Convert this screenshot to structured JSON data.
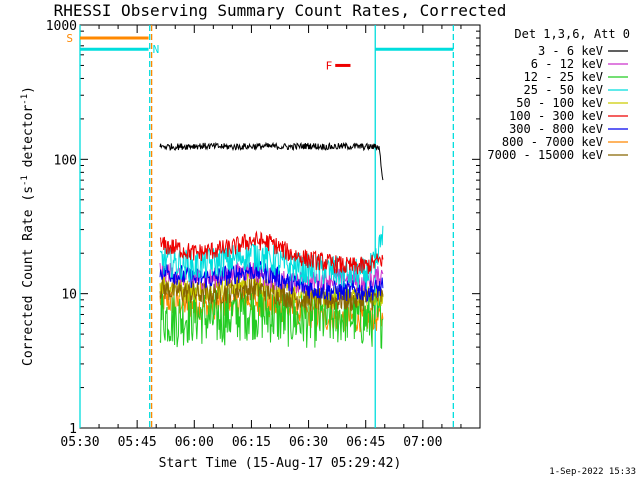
{
  "chart_data": {
    "type": "line",
    "title": "RHESSI Observing Summary Count Rates, Corrected",
    "xlabel": "Start Time (15-Aug-17 05:29:42)",
    "ylabel_prefix": "Corrected Count Rate (s",
    "ylabel_sup1": "-1",
    "ylabel_mid": " detector",
    "ylabel_sup2": "-1",
    "ylabel_suffix": ")",
    "y_scale": "log",
    "ylim": [
      1,
      1000
    ],
    "xlim_minutes": [
      0,
      105
    ],
    "x_ticks": [
      {
        "label": "05:30",
        "min": 0
      },
      {
        "label": "05:45",
        "min": 15
      },
      {
        "label": "06:00",
        "min": 30
      },
      {
        "label": "06:15",
        "min": 45
      },
      {
        "label": "06:30",
        "min": 60
      },
      {
        "label": "06:45",
        "min": 75
      },
      {
        "label": "07:00",
        "min": 90
      }
    ],
    "y_ticks": [
      {
        "label": "1",
        "value": 1
      },
      {
        "label": "10",
        "value": 10
      },
      {
        "label": "100",
        "value": 100
      },
      {
        "label": "1000",
        "value": 1000
      }
    ],
    "legend_header": "Det 1,3,6, Att 0",
    "legend_placement": "right",
    "series": [
      {
        "name": "3 - 6 keV",
        "color": "#000000",
        "x": [
          21,
          25,
          30,
          35,
          40,
          45,
          50,
          55,
          60,
          65,
          70,
          75,
          78.5,
          79.5
        ],
        "y": [
          125,
          124,
          126,
          125,
          124,
          125,
          125,
          124,
          126,
          124,
          125,
          124,
          124,
          70
        ]
      },
      {
        "name": "6 - 12 keV",
        "color": "#cc33cc",
        "x": [
          21,
          25,
          30,
          35,
          40,
          45,
          50,
          55,
          60,
          65,
          70,
          75,
          79.5
        ],
        "y": [
          15,
          14,
          13,
          13,
          14,
          15,
          13,
          12,
          12,
          13,
          13,
          12,
          14
        ]
      },
      {
        "name": "12 - 25 keV",
        "color": "#22cc22",
        "x": [
          21,
          25,
          30,
          35,
          40,
          45,
          50,
          55,
          60,
          65,
          70,
          75,
          79.5
        ],
        "y": [
          7,
          6.5,
          7,
          6.5,
          7,
          7.5,
          7,
          6.5,
          6.5,
          6.5,
          7,
          6.5,
          6.5
        ]
      },
      {
        "name": "25 - 50 keV",
        "color": "#00dddd",
        "x": [
          21,
          25,
          30,
          35,
          40,
          45,
          50,
          55,
          60,
          65,
          70,
          75,
          78,
          79.5
        ],
        "y": [
          18,
          17,
          16,
          17,
          18,
          20,
          18,
          16,
          15,
          15,
          14,
          14,
          17,
          32
        ]
      },
      {
        "name": "50 - 100 keV",
        "color": "#cccc00",
        "x": [
          21,
          25,
          30,
          35,
          40,
          45,
          50,
          55,
          60,
          65,
          70,
          75,
          79.5
        ],
        "y": [
          12,
          11,
          10.5,
          11,
          11.5,
          12,
          11,
          10,
          9.5,
          9.5,
          9.5,
          9.5,
          10
        ]
      },
      {
        "name": "100 - 300 keV",
        "color": "#ee0000",
        "x": [
          21,
          25,
          30,
          35,
          40,
          45,
          50,
          55,
          60,
          65,
          70,
          75,
          79.5
        ],
        "y": [
          23,
          22,
          20,
          21,
          22,
          25,
          24,
          20,
          18,
          17,
          16,
          16,
          18
        ]
      },
      {
        "name": "300 - 800 keV",
        "color": "#0000ee",
        "x": [
          21,
          25,
          30,
          35,
          40,
          45,
          50,
          55,
          60,
          65,
          70,
          75,
          79.5
        ],
        "y": [
          15,
          14,
          13,
          13,
          14,
          15,
          14,
          12,
          11,
          10.5,
          10.5,
          10.5,
          11
        ]
      },
      {
        "name": "800 - 7000 keV",
        "color": "#ff8800",
        "x": [
          21,
          25,
          30,
          35,
          40,
          45,
          50,
          55,
          60,
          65,
          70,
          75,
          79.5
        ],
        "y": [
          9,
          8.5,
          8,
          8,
          8.5,
          9,
          8,
          7.5,
          7,
          6.5,
          6.5,
          6.5,
          6.5
        ]
      },
      {
        "name": "7000 - 15000 keV",
        "color": "#886600",
        "x": [
          21,
          25,
          30,
          35,
          40,
          45,
          50,
          55,
          60,
          65,
          70,
          75,
          79.5
        ],
        "y": [
          11,
          10.5,
          10,
          10,
          10.5,
          11,
          10.5,
          9.5,
          9,
          9,
          9,
          9,
          9.5
        ]
      }
    ],
    "annotations": [
      {
        "label": "S",
        "color": "#ff8800",
        "x_start": 0,
        "x_end": 18
      },
      {
        "label": "N",
        "color": "#00dddd",
        "x_start": 0,
        "x_end": 18
      },
      {
        "label": "",
        "color": "#00dddd",
        "x_start": 77.5,
        "x_end": 98
      },
      {
        "label": "F",
        "color": "#ee0000",
        "x_start": 67,
        "x_end": 71
      }
    ],
    "vertical_lines": [
      {
        "color": "#00dddd",
        "min": 0,
        "style": "solid"
      },
      {
        "color": "#00dddd",
        "min": 18.3,
        "style": "dashed"
      },
      {
        "color": "#ff8800",
        "min": 18.8,
        "style": "dashed"
      },
      {
        "color": "#00dddd",
        "min": 77.5,
        "style": "solid"
      },
      {
        "color": "#00dddd",
        "min": 98,
        "style": "dashed"
      }
    ]
  },
  "footer": {
    "timestamp": "1-Sep-2022 15:33"
  }
}
